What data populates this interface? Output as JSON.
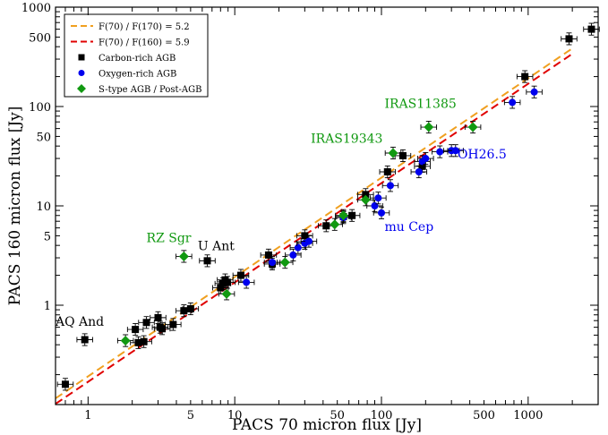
{
  "chart_data": {
    "type": "scatter",
    "xlabel": "PACS 70 micron flux [Jy]",
    "ylabel": "PACS 160 micron flux [Jy]",
    "x_scale": "log",
    "y_scale": "log",
    "xlim": [
      0.6,
      3000
    ],
    "ylim": [
      0.1,
      1000
    ],
    "x_ticks": [
      {
        "value": 1,
        "label": "1"
      },
      {
        "value": 5,
        "label": "5"
      },
      {
        "value": 10,
        "label": "10"
      },
      {
        "value": 50,
        "label": "50"
      },
      {
        "value": 100,
        "label": "100"
      },
      {
        "value": 500,
        "label": "500"
      },
      {
        "value": 1000,
        "label": "1000"
      }
    ],
    "y_ticks": [
      {
        "value": 1,
        "label": "1"
      },
      {
        "value": 5,
        "label": "5"
      },
      {
        "value": 10,
        "label": "10"
      },
      {
        "value": 50,
        "label": "50"
      },
      {
        "value": 100,
        "label": "100"
      },
      {
        "value": 500,
        "label": "500"
      },
      {
        "value": 1000,
        "label": "1000"
      }
    ],
    "legend_position": "top-left",
    "lines": [
      {
        "name": "F(70) / F(170) = 5.2",
        "ratio": 5.2,
        "color": "#f0a020",
        "dash": "dashed"
      },
      {
        "name": "F(70) / F(160) = 5.9",
        "ratio": 5.9,
        "color": "#e00000",
        "dash": "dashed"
      }
    ],
    "series": [
      {
        "name": "Carbon-rich AGB",
        "marker": "square",
        "color": "#000000",
        "points": [
          [
            0.7,
            0.16
          ],
          [
            0.95,
            0.45
          ],
          [
            2.1,
            0.57
          ],
          [
            2.2,
            0.42
          ],
          [
            2.4,
            0.43
          ],
          [
            2.5,
            0.67
          ],
          [
            3.0,
            0.75
          ],
          [
            3.1,
            0.6
          ],
          [
            3.2,
            0.58
          ],
          [
            3.8,
            0.64
          ],
          [
            4.5,
            0.88
          ],
          [
            5.0,
            0.92
          ],
          [
            6.5,
            2.8
          ],
          [
            8.0,
            1.5
          ],
          [
            8.3,
            1.65
          ],
          [
            8.6,
            1.8
          ],
          [
            8.9,
            1.7
          ],
          [
            11.0,
            2.0
          ],
          [
            17.0,
            3.2
          ],
          [
            18.0,
            2.6
          ],
          [
            30.0,
            5.0
          ],
          [
            42.0,
            6.3
          ],
          [
            55.0,
            7.8
          ],
          [
            63.0,
            8.0
          ],
          [
            78.0,
            13.0
          ],
          [
            110.0,
            22.0
          ],
          [
            140.0,
            32.0
          ],
          [
            190.0,
            25.0
          ],
          [
            950.0,
            200.0
          ],
          [
            1900.0,
            480.0
          ],
          [
            2700.0,
            600.0
          ]
        ]
      },
      {
        "name": "Oxygen-rich AGB",
        "marker": "circle",
        "color": "#0000ee",
        "points": [
          [
            12.0,
            1.7
          ],
          [
            18.0,
            2.7
          ],
          [
            25.0,
            3.2
          ],
          [
            27.0,
            3.8
          ],
          [
            30.0,
            4.2
          ],
          [
            32.0,
            4.4
          ],
          [
            55.0,
            7.6
          ],
          [
            90.0,
            10.0
          ],
          [
            95.0,
            12.0
          ],
          [
            100.0,
            8.5
          ],
          [
            115.0,
            16.0
          ],
          [
            180.0,
            22.0
          ],
          [
            190.0,
            28.0
          ],
          [
            200.0,
            30.0
          ],
          [
            250.0,
            35.0
          ],
          [
            300.0,
            36.0
          ],
          [
            320.0,
            36.0
          ],
          [
            780.0,
            110.0
          ],
          [
            1100.0,
            140.0
          ]
        ]
      },
      {
        "name": "S-type AGB / Post-AGB",
        "marker": "diamond",
        "color": "#119911",
        "points": [
          [
            1.8,
            0.44
          ],
          [
            4.5,
            3.1
          ],
          [
            8.8,
            1.3
          ],
          [
            22.0,
            2.7
          ],
          [
            48.0,
            6.5
          ],
          [
            55.0,
            8.0
          ],
          [
            78.0,
            11.5
          ],
          [
            120.0,
            34.0
          ],
          [
            210.0,
            62.0
          ],
          [
            420.0,
            62.0
          ]
        ]
      }
    ],
    "annotations": [
      {
        "text": "AQ And",
        "x": 0.6,
        "y": 0.62,
        "color": "#000000"
      },
      {
        "text": "RZ Sgr",
        "x": 2.5,
        "y": 4.3,
        "color": "#119911"
      },
      {
        "text": "U Ant",
        "x": 5.6,
        "y": 3.6,
        "color": "#000000"
      },
      {
        "text": "IRAS19343",
        "x": 33.0,
        "y": 43.0,
        "color": "#119911"
      },
      {
        "text": "IRAS11385",
        "x": 105.0,
        "y": 97.0,
        "color": "#119911"
      },
      {
        "text": "OH26.5",
        "x": 330.0,
        "y": 30.0,
        "color": "#0000ee"
      },
      {
        "text": "mu Cep",
        "x": 105.0,
        "y": 5.6,
        "color": "#0000ee"
      }
    ]
  }
}
